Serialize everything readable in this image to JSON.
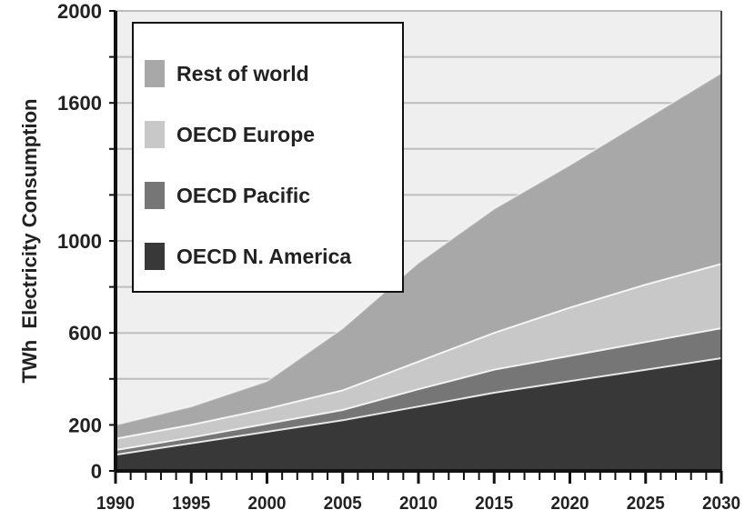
{
  "chart_data": {
    "type": "area",
    "stacked": true,
    "title": "",
    "xlabel": "",
    "ylabel": "TWh  Electricity Consumption",
    "x": [
      1990,
      1995,
      2000,
      2005,
      2010,
      2015,
      2020,
      2025,
      2030
    ],
    "xticks": [
      "1990",
      "1995",
      "2000",
      "2005",
      "2010",
      "2015",
      "2020",
      "2025",
      "2030"
    ],
    "yticks": [
      "0",
      "200",
      "600",
      "1000",
      "1600",
      "2000"
    ],
    "ylim": [
      0,
      2000
    ],
    "grid": true,
    "legend_position": "top-left",
    "series": [
      {
        "name": "OECD N. America",
        "color": "#383838",
        "values": [
          70,
          120,
          170,
          220,
          280,
          340,
          390,
          440,
          490
        ]
      },
      {
        "name": "OECD Pacific",
        "color": "#767676",
        "values": [
          20,
          25,
          35,
          45,
          75,
          100,
          110,
          120,
          130
        ]
      },
      {
        "name": "OECD Europe",
        "color": "#c8c8c8",
        "values": [
          50,
          55,
          65,
          85,
          120,
          160,
          210,
          250,
          280
        ]
      },
      {
        "name": "Rest of world",
        "color": "#a8a8a8",
        "values": [
          60,
          80,
          120,
          270,
          430,
          540,
          620,
          720,
          830
        ]
      }
    ],
    "legend_order": [
      "Rest of world",
      "OECD Europe",
      "OECD Pacific",
      "OECD N. America"
    ],
    "background_color": "#efefef",
    "grid_color": "#bdbdbd"
  }
}
